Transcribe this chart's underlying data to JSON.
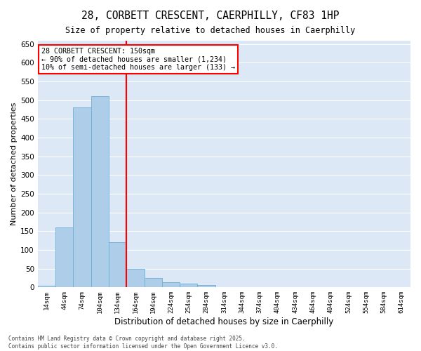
{
  "title": "28, CORBETT CRESCENT, CAERPHILLY, CF83 1HP",
  "subtitle": "Size of property relative to detached houses in Caerphilly",
  "xlabel": "Distribution of detached houses by size in Caerphilly",
  "ylabel": "Number of detached properties",
  "bar_values": [
    5,
    160,
    480,
    510,
    120,
    50,
    25,
    13,
    10,
    7,
    1,
    0,
    0,
    0,
    0,
    0,
    0,
    0,
    1,
    0,
    0
  ],
  "bar_labels": [
    "14sqm",
    "44sqm",
    "74sqm",
    "104sqm",
    "134sqm",
    "164sqm",
    "194sqm",
    "224sqm",
    "254sqm",
    "284sqm",
    "314sqm",
    "344sqm",
    "374sqm",
    "404sqm",
    "434sqm",
    "464sqm",
    "494sqm",
    "524sqm",
    "554sqm",
    "584sqm",
    "614sqm"
  ],
  "bar_color": "#aecde8",
  "bar_edge_color": "#6aafd6",
  "vline_x": 4.5,
  "vline_color": "red",
  "annotation_text": "28 CORBETT CRESCENT: 150sqm\n← 90% of detached houses are smaller (1,234)\n10% of semi-detached houses are larger (133) →",
  "annotation_box_color": "white",
  "annotation_box_edge_color": "red",
  "ylim": [
    0,
    660
  ],
  "yticks": [
    0,
    50,
    100,
    150,
    200,
    250,
    300,
    350,
    400,
    450,
    500,
    550,
    600,
    650
  ],
  "background_color": "#dce8f5",
  "grid_color": "white",
  "footer_line1": "Contains HM Land Registry data © Crown copyright and database right 2025.",
  "footer_line2": "Contains public sector information licensed under the Open Government Licence v3.0."
}
